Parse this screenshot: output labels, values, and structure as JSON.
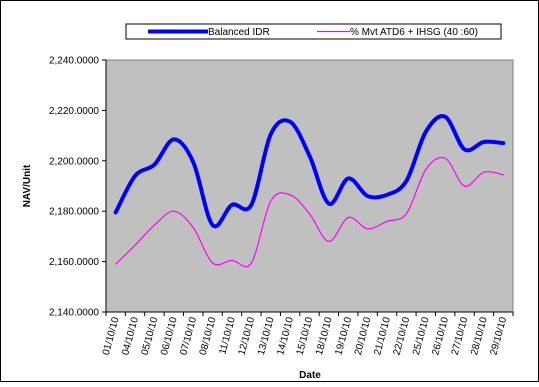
{
  "chart_data": {
    "type": "line",
    "title": "",
    "xlabel": "Date",
    "ylabel": "NAV/Unit",
    "ylim": [
      2140,
      2240
    ],
    "ytick_values": [
      2140,
      2160,
      2180,
      2200,
      2220,
      2240
    ],
    "ytick_labels": [
      "2,140.0000",
      "2,160.0000",
      "2,180.0000",
      "2,200.0000",
      "2,220.0000",
      "2,240.0000"
    ],
    "categories": [
      "01/10/10",
      "04/10/10",
      "05/10/10",
      "06/10/10",
      "07/10/10",
      "08/10/10",
      "11/10/10",
      "12/10/10",
      "13/10/10",
      "14/10/10",
      "15/10/10",
      "18/10/10",
      "19/10/10",
      "20/10/10",
      "21/10/10",
      "22/10/10",
      "25/10/10",
      "26/10/10",
      "27/10/10",
      "28/10/10",
      "29/10/10"
    ],
    "series": [
      {
        "name": "Balanced IDR",
        "color": "#0000ff",
        "values": [
          2179.5,
          2194.0,
          2198.5,
          2208.5,
          2199.5,
          2174.5,
          2182.5,
          2182.5,
          2210.5,
          2215.5,
          2202.0,
          2183.0,
          2193.0,
          2186.0,
          2186.5,
          2192.0,
          2211.5,
          2217.5,
          2204.5,
          2207.5,
          2207.0
        ]
      },
      {
        "name": "% Mvt ATD6 + IHSG (40 :60)",
        "color": "#ff00ff",
        "values": [
          2159.0,
          2166.5,
          2174.5,
          2180.0,
          2173.5,
          2159.5,
          2160.5,
          2159.5,
          2184.0,
          2186.5,
          2179.0,
          2168.0,
          2177.5,
          2173.0,
          2176.0,
          2179.0,
          2196.5,
          2201.0,
          2190.0,
          2195.5,
          2194.5
        ]
      }
    ],
    "grid": false,
    "legend_position": "top",
    "plot_background": "#c0c0c0"
  }
}
